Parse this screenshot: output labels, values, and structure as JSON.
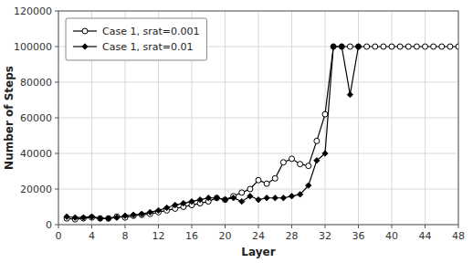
{
  "chart_data": {
    "type": "line",
    "xlabel": "Layer",
    "ylabel": "Number of Steps",
    "xlim": [
      0,
      48
    ],
    "ylim": [
      0,
      120000
    ],
    "xticks": [
      0,
      4,
      8,
      12,
      16,
      20,
      24,
      28,
      32,
      36,
      40,
      44,
      48
    ],
    "yticks": [
      0,
      20000,
      40000,
      60000,
      80000,
      100000,
      120000
    ],
    "grid": true,
    "legend": "upper left",
    "series": [
      {
        "name": "Case 1, srat=0.001",
        "color": "#000000",
        "marker": "circle",
        "x": [
          1,
          2,
          3,
          4,
          5,
          6,
          7,
          8,
          9,
          10,
          11,
          12,
          13,
          14,
          15,
          16,
          17,
          18,
          19,
          20,
          21,
          22,
          23,
          24,
          25,
          26,
          27,
          28,
          29,
          30,
          31,
          32,
          33,
          34,
          35,
          36,
          37,
          38,
          39,
          40,
          41,
          42,
          43,
          44,
          45,
          46,
          47,
          48
        ],
        "values": [
          3500,
          3000,
          3500,
          4000,
          3500,
          3500,
          4500,
          4000,
          5000,
          5500,
          6000,
          7000,
          8000,
          9000,
          10000,
          11000,
          12000,
          13000,
          15000,
          14000,
          16000,
          18000,
          20000,
          25000,
          23000,
          26000,
          35000,
          37000,
          34000,
          33000,
          47000,
          62000,
          100000,
          100000,
          100000,
          100000,
          100000,
          100000,
          100000,
          100000,
          100000,
          100000,
          100000,
          100000,
          100000,
          100000,
          100000,
          100000
        ]
      },
      {
        "name": "Case 1, srat=0.01",
        "color": "#000000",
        "marker": "diamond",
        "x": [
          1,
          2,
          3,
          4,
          5,
          6,
          7,
          8,
          9,
          10,
          11,
          12,
          13,
          14,
          15,
          16,
          17,
          18,
          19,
          20,
          21,
          22,
          23,
          24,
          25,
          26,
          27,
          28,
          29,
          30,
          31,
          32,
          33,
          34,
          35,
          36
        ],
        "values": [
          4500,
          4000,
          4000,
          4500,
          3500,
          3500,
          4000,
          5000,
          5500,
          6000,
          7000,
          8000,
          9500,
          11000,
          12000,
          13000,
          14000,
          15000,
          15000,
          14000,
          15000,
          13000,
          16000,
          14000,
          15000,
          15000,
          15000,
          16000,
          17000,
          22000,
          36000,
          40000,
          100000,
          100000,
          73000,
          100000
        ]
      }
    ]
  }
}
